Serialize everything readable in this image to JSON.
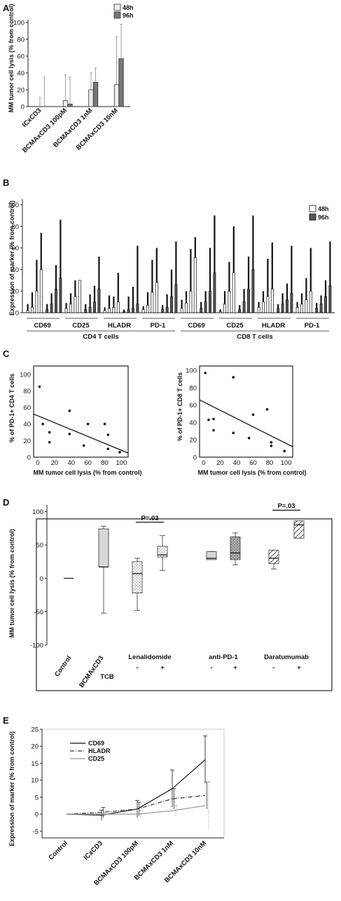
{
  "panels": {
    "A": {
      "letter": "A",
      "chart_data": {
        "type": "bar",
        "categories": [
          "ICxCD3",
          "BCMAxCD3 100pM",
          "BCMAxCD3 1nM",
          "BCMAxCD3 10nM"
        ],
        "series": [
          {
            "name": "48h",
            "values": [
              0,
              7,
              20,
              26
            ],
            "err_up": [
              11,
              31,
              20,
              57
            ],
            "color": "#ececec"
          },
          {
            "name": "96h",
            "values": [
              0,
              3,
              29,
              57
            ],
            "err_up": [
              35,
              32,
              17,
              41
            ],
            "color": "#777777"
          }
        ],
        "ylabel": "MM tumor cell lysis (% from control)",
        "ylim": [
          0,
          100
        ],
        "yticks": [
          0,
          20,
          40,
          60,
          80,
          100
        ],
        "legend": "top-right"
      }
    },
    "B": {
      "letter": "B",
      "chart_data": {
        "type": "bar",
        "ylabel": "Expression of marker (% from control)",
        "ylim": [
          0,
          100
        ],
        "yticks": [
          0,
          20,
          40,
          60,
          80,
          100
        ],
        "legend": "top-right",
        "series_names": [
          "48h",
          "96h"
        ],
        "groups": [
          {
            "label": "CD69",
            "v48": [
              2,
              5,
              20,
              40
            ],
            "v96": [
              3,
              8,
              22,
              32
            ],
            "e48": [
              6,
              14,
              29,
              34
            ],
            "e96": [
              5,
              10,
              22,
              54
            ]
          },
          {
            "label": "CD25",
            "v48": [
              4,
              8,
              15,
              30
            ],
            "v96": [
              3,
              5,
              10,
              22
            ],
            "e48": [
              5,
              10,
              15,
              0
            ],
            "e96": [
              5,
              12,
              15,
              30
            ]
          },
          {
            "label": "HLADR",
            "v48": [
              2,
              4,
              5,
              10
            ],
            "v96": [
              1,
              3,
              4,
              8
            ],
            "e48": [
              3,
              12,
              10,
              27
            ],
            "e96": [
              2,
              12,
              20,
              54
            ]
          },
          {
            "label": "PD-1",
            "v48": [
              3,
              7,
              19,
              28
            ],
            "v96": [
              3,
              5,
              15,
              26
            ],
            "e48": [
              3,
              12,
              30,
              32
            ],
            "e96": [
              4,
              12,
              25,
              40
            ]
          },
          {
            "label": "CD69",
            "v48": [
              4,
              9,
              20,
              51
            ],
            "v96": [
              4,
              10,
              20,
              37
            ],
            "e48": [
              8,
              11,
              39,
              19
            ],
            "e96": [
              6,
              10,
              40,
              53
            ]
          },
          {
            "label": "CD25",
            "v48": [
              1,
              8,
              20,
              37
            ],
            "v96": [
              3,
              10,
              22,
              40
            ],
            "e48": [
              2,
              12,
              27,
              43
            ],
            "e96": [
              4,
              12,
              30,
              50
            ]
          },
          {
            "label": "HLADR",
            "v48": [
              5,
              10,
              15,
              22
            ],
            "v96": [
              4,
              8,
              12,
              18
            ],
            "e48": [
              5,
              10,
              35,
              43
            ],
            "e96": [
              4,
              10,
              15,
              44
            ]
          },
          {
            "label": "PD-1",
            "v48": [
              5,
              8,
              12,
              20
            ],
            "v96": [
              4,
              8,
              15,
              25
            ],
            "e48": [
              5,
              10,
              20,
              40
            ],
            "e96": [
              5,
              8,
              15,
              41
            ]
          }
        ],
        "cell_groups": [
          "CD4 T cells",
          "CD8 T cells"
        ]
      }
    },
    "C": {
      "letter": "C",
      "chart_data": [
        {
          "type": "scatter",
          "xlabel": "MM tumor cell lysis (% from control)",
          "ylabel": "% of PD-1+ CD4 T cells",
          "xlim": [
            -5,
            108
          ],
          "ylim": [
            0,
            110
          ],
          "xticks": [
            0,
            20,
            40,
            60,
            80,
            100
          ],
          "yticks": [
            0,
            20,
            40,
            60,
            80,
            100
          ],
          "points": [
            [
              2,
              85
            ],
            [
              6,
              40
            ],
            [
              14,
              30
            ],
            [
              14,
              18
            ],
            [
              38,
              56
            ],
            [
              38,
              28
            ],
            [
              55,
              14
            ],
            [
              60,
              40
            ],
            [
              80,
              40
            ],
            [
              84,
              27
            ],
            [
              84,
              10
            ],
            [
              98,
              6
            ]
          ],
          "fit": [
            [
              -5,
              52
            ],
            [
              108,
              5
            ]
          ]
        },
        {
          "type": "scatter",
          "xlabel": "MM tumor cell lysis (% from control)",
          "ylabel": "% of PD-1+ CD8 T cells",
          "xlim": [
            -5,
            108
          ],
          "ylim": [
            0,
            105
          ],
          "xticks": [
            0,
            20,
            40,
            60,
            80,
            100
          ],
          "yticks": [
            0,
            20,
            40,
            60,
            80,
            100
          ],
          "points": [
            [
              2,
              97
            ],
            [
              6,
              43
            ],
            [
              12,
              44
            ],
            [
              12,
              31
            ],
            [
              36,
              92
            ],
            [
              36,
              28
            ],
            [
              55,
              22
            ],
            [
              60,
              49
            ],
            [
              77,
              55
            ],
            [
              82,
              17
            ],
            [
              82,
              13
            ],
            [
              98,
              7
            ]
          ],
          "fit": [
            [
              -5,
              66
            ],
            [
              108,
              12
            ]
          ]
        }
      ]
    },
    "D": {
      "letter": "D",
      "chart_data": {
        "type": "box",
        "ylabel": "MM tumor cell lysis (% from control)",
        "ylim": [
          -100,
          110
        ],
        "yticks": [
          -100,
          -50,
          0,
          50,
          100
        ],
        "boxes": [
          {
            "key": "control",
            "min": 0,
            "q1": 0,
            "median": 0,
            "q3": 0,
            "max": 0,
            "pattern": "none"
          },
          {
            "key": "tcb",
            "min": -52,
            "q1": 17,
            "median": 17,
            "q3": 74,
            "max": 78,
            "pattern": "gray"
          },
          {
            "key": "len-",
            "min": -48,
            "q1": -22,
            "median": 7,
            "q3": 25,
            "max": 30,
            "pattern": "dots"
          },
          {
            "key": "len+",
            "min": 12,
            "q1": 32,
            "median": 35,
            "q3": 48,
            "max": 64,
            "pattern": "dots"
          },
          {
            "key": "pd1-",
            "min": 28,
            "q1": 28,
            "median": 30,
            "q3": 40,
            "max": 40,
            "pattern": "gray"
          },
          {
            "key": "pd1+",
            "min": 20,
            "q1": 28,
            "median": 38,
            "q3": 62,
            "max": 68,
            "pattern": "darkdots"
          },
          {
            "key": "dara-",
            "min": 14,
            "q1": 22,
            "median": 30,
            "q3": 42,
            "max": 42,
            "pattern": "hatch"
          },
          {
            "key": "dara+",
            "min": 60,
            "q1": 60,
            "median": 80,
            "q3": 86,
            "max": 86,
            "pattern": "hatch"
          }
        ],
        "group_labels": [
          "Lenalidomide",
          "anti-PD-1",
          "Daratumumab"
        ],
        "single_labels": [
          "Control",
          "BCMAxCD3",
          "TCB"
        ],
        "minus": "-",
        "plus": "+",
        "annotations": [
          "P=.03",
          "P=.03"
        ]
      }
    },
    "E": {
      "letter": "E",
      "chart_data": {
        "type": "line",
        "categories": [
          "Control",
          "ICxCD3",
          "BCMAxCD3 100pM",
          "BCMAxCD3 1nM",
          "BCMAxCD3 10nM"
        ],
        "series": [
          {
            "name": "CD69",
            "values": [
              0,
              -0.3,
              1.5,
              7.5,
              16
            ],
            "err": [
              0,
              1.5,
              2.5,
              5.5,
              7
            ],
            "dash": "none",
            "color": "#111111"
          },
          {
            "name": "HLADR",
            "values": [
              0,
              0.5,
              1.5,
              4.5,
              5.5
            ],
            "err": [
              0,
              1.5,
              2,
              3,
              4
            ],
            "dash": "6,2,1,2",
            "color": "#333333"
          },
          {
            "name": "CD25",
            "values": [
              0,
              0,
              0,
              1,
              2.5
            ],
            "err": [
              0,
              0.5,
              1,
              1.5,
              7
            ],
            "dash": "none",
            "color": "#9a9a9a"
          }
        ],
        "ylabel": "Expression of marker (% from control)",
        "ylim": [
          -7,
          25
        ],
        "yticks": [
          -5,
          0,
          5,
          10,
          15,
          20,
          25
        ],
        "legend": "top-left"
      }
    }
  }
}
